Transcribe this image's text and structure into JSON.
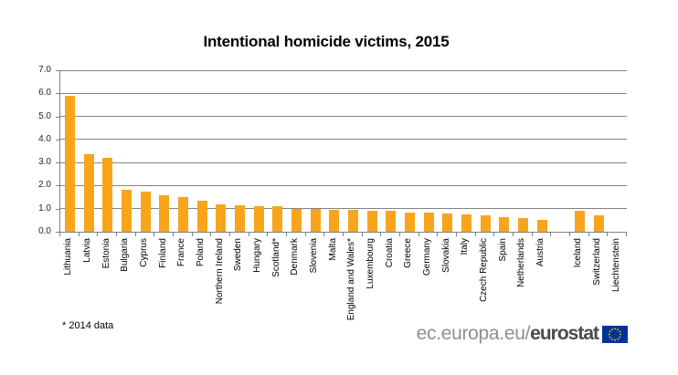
{
  "title": "Intentional homicide victims, 2015",
  "footnote": "* 2014 data",
  "branding": {
    "url_prefix": "ec.europa.eu/",
    "brand": "eurostat",
    "flag_icon": "eu-flag-icon"
  },
  "colors": {
    "bar": "#F9A51B",
    "grid": "#848484",
    "axis": "#808080",
    "title_text": "#000000",
    "tick_text": "#262626",
    "brand_gray": "#8F8F8F",
    "brand_dark": "#4A4A4F",
    "flag_blue": "#003399",
    "flag_stars": "#FFCC00"
  },
  "chart_data": {
    "type": "bar",
    "title": "Intentional homicide victims, 2015",
    "categories": [
      "Lithuania",
      "Latvia",
      "Estonia",
      "Bulgaria",
      "Cyprus",
      "Finland",
      "France",
      "Poland",
      "Northern Ireland",
      "Sweden",
      "Hungary",
      "Scotland*",
      "Denmark",
      "Slovenia",
      "Malta",
      "England and Wales*",
      "Luxembourg",
      "Croatia",
      "Greece",
      "Germany",
      "Slovakia",
      "Italy",
      "Czech Republic",
      "Spain",
      "Netherlands",
      "Austria",
      "",
      "Iceland",
      "Switzerland",
      "Liechtenstein"
    ],
    "values": [
      5.9,
      3.35,
      3.2,
      1.8,
      1.75,
      1.6,
      1.5,
      1.35,
      1.2,
      1.15,
      1.1,
      1.1,
      1.0,
      1.0,
      0.95,
      0.95,
      0.9,
      0.9,
      0.85,
      0.85,
      0.8,
      0.75,
      0.7,
      0.65,
      0.6,
      0.5,
      null,
      0.9,
      0.7,
      0.0
    ],
    "xlabel": "",
    "ylabel": "",
    "ylim": [
      0,
      7
    ],
    "ytick_step": 1.0,
    "ytick_format_decimals": 1,
    "grid": true,
    "legend": "none",
    "bar_color": "#F9A51B"
  }
}
